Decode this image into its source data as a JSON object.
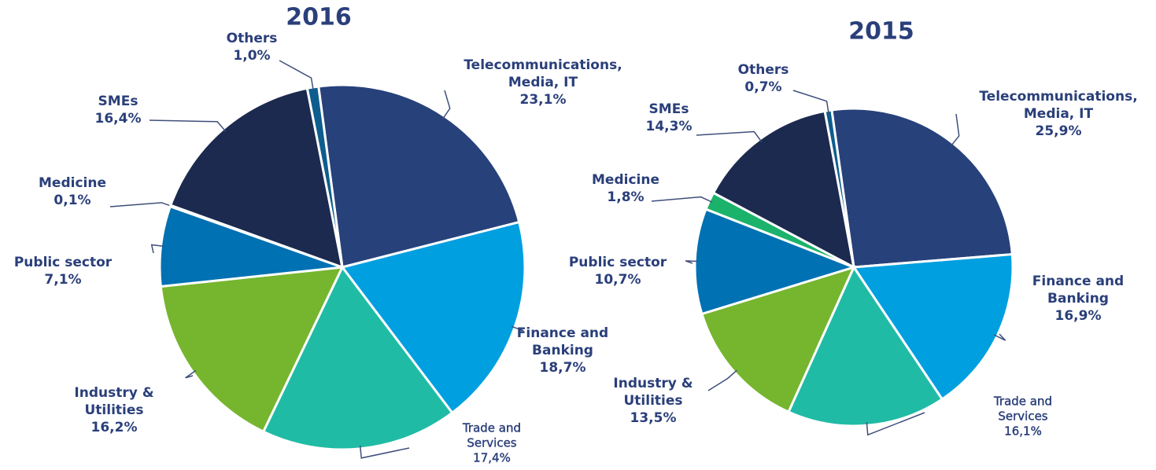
{
  "chart_data": [
    {
      "type": "pie",
      "title": "2016",
      "categories": [
        "Telecommunications, Media, IT",
        "Finance and Banking",
        "Trade and Services",
        "Industry & Utilities",
        "Public sector",
        "Medicine",
        "SMEs",
        "Others"
      ],
      "values": [
        23.1,
        18.7,
        17.4,
        16.2,
        7.1,
        0.1,
        16.4,
        1.0
      ],
      "value_labels": [
        "23,1%",
        "18,7%",
        "17,4%",
        "16,2%",
        "7,1%",
        "0,1%",
        "16,4%",
        "1,0%"
      ],
      "colors": [
        "#27417a",
        "#009fe0",
        "#20bba5",
        "#76b52e",
        "#0071b2",
        "#1bb36b",
        "#1b2a4e",
        "#0e5d8e"
      ]
    },
    {
      "type": "pie",
      "title": "2015",
      "categories": [
        "Telecommunications, Media, IT",
        "Finance and Banking",
        "Trade and Services",
        "Industry & Utilities",
        "Public sector",
        "Medicine",
        "SMEs",
        "Others"
      ],
      "values": [
        25.9,
        16.9,
        16.1,
        13.5,
        10.7,
        1.8,
        14.3,
        0.7
      ],
      "value_labels": [
        "25,9%",
        "16,9%",
        "16,1%",
        "13,5%",
        "10,7%",
        "1,8%",
        "14,3%",
        "0,7%"
      ],
      "colors": [
        "#27417a",
        "#009fe0",
        "#20bba5",
        "#76b52e",
        "#0071b2",
        "#1bb36b",
        "#1b2a4e",
        "#0e5d8e"
      ]
    }
  ]
}
